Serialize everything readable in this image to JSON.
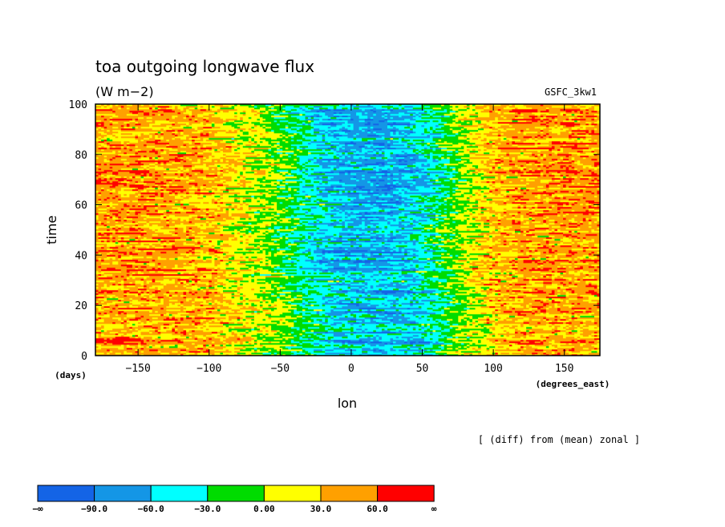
{
  "chart_data": {
    "type": "heatmap",
    "title": "toa outgoing longwave flux",
    "units": "(W m−2)",
    "dataset": "GSFC_3kw1",
    "xlabel": "lon",
    "ylabel": "time",
    "x_unit_label": "(degrees_east)",
    "y_unit_label": "(days)",
    "annotation": "[ (diff) from (mean) zonal ]",
    "xlim": [
      -180,
      175
    ],
    "ylim": [
      0,
      100
    ],
    "x_ticks": [
      -150,
      -100,
      -50,
      0,
      50,
      100,
      150
    ],
    "y_ticks": [
      0,
      20,
      40,
      60,
      80,
      100
    ],
    "x_tick_labels": [
      "−150",
      "−100",
      "−50",
      "0",
      "50",
      "100",
      "150"
    ],
    "y_tick_labels": [
      "0",
      "20",
      "40",
      "60",
      "80",
      "100"
    ],
    "colorbar": {
      "colors": [
        "#1464e6",
        "#1496e6",
        "#00ffff",
        "#00dc00",
        "#ffff00",
        "#ffa000",
        "#ff0000"
      ],
      "levels": [
        "−∞",
        "−90.0",
        "−60.0",
        "−30.0",
        "0.00",
        "30.0",
        "60.0",
        "∞"
      ]
    },
    "profile": {
      "lon": [
        -180,
        -150,
        -120,
        -100,
        -80,
        -60,
        -40,
        -20,
        0,
        20,
        40,
        60,
        80,
        100,
        120,
        150,
        175
      ],
      "value": [
        42,
        42,
        40,
        34,
        18,
        4,
        -22,
        -50,
        -62,
        -65,
        -55,
        -30,
        5,
        30,
        40,
        42,
        42
      ]
    }
  }
}
